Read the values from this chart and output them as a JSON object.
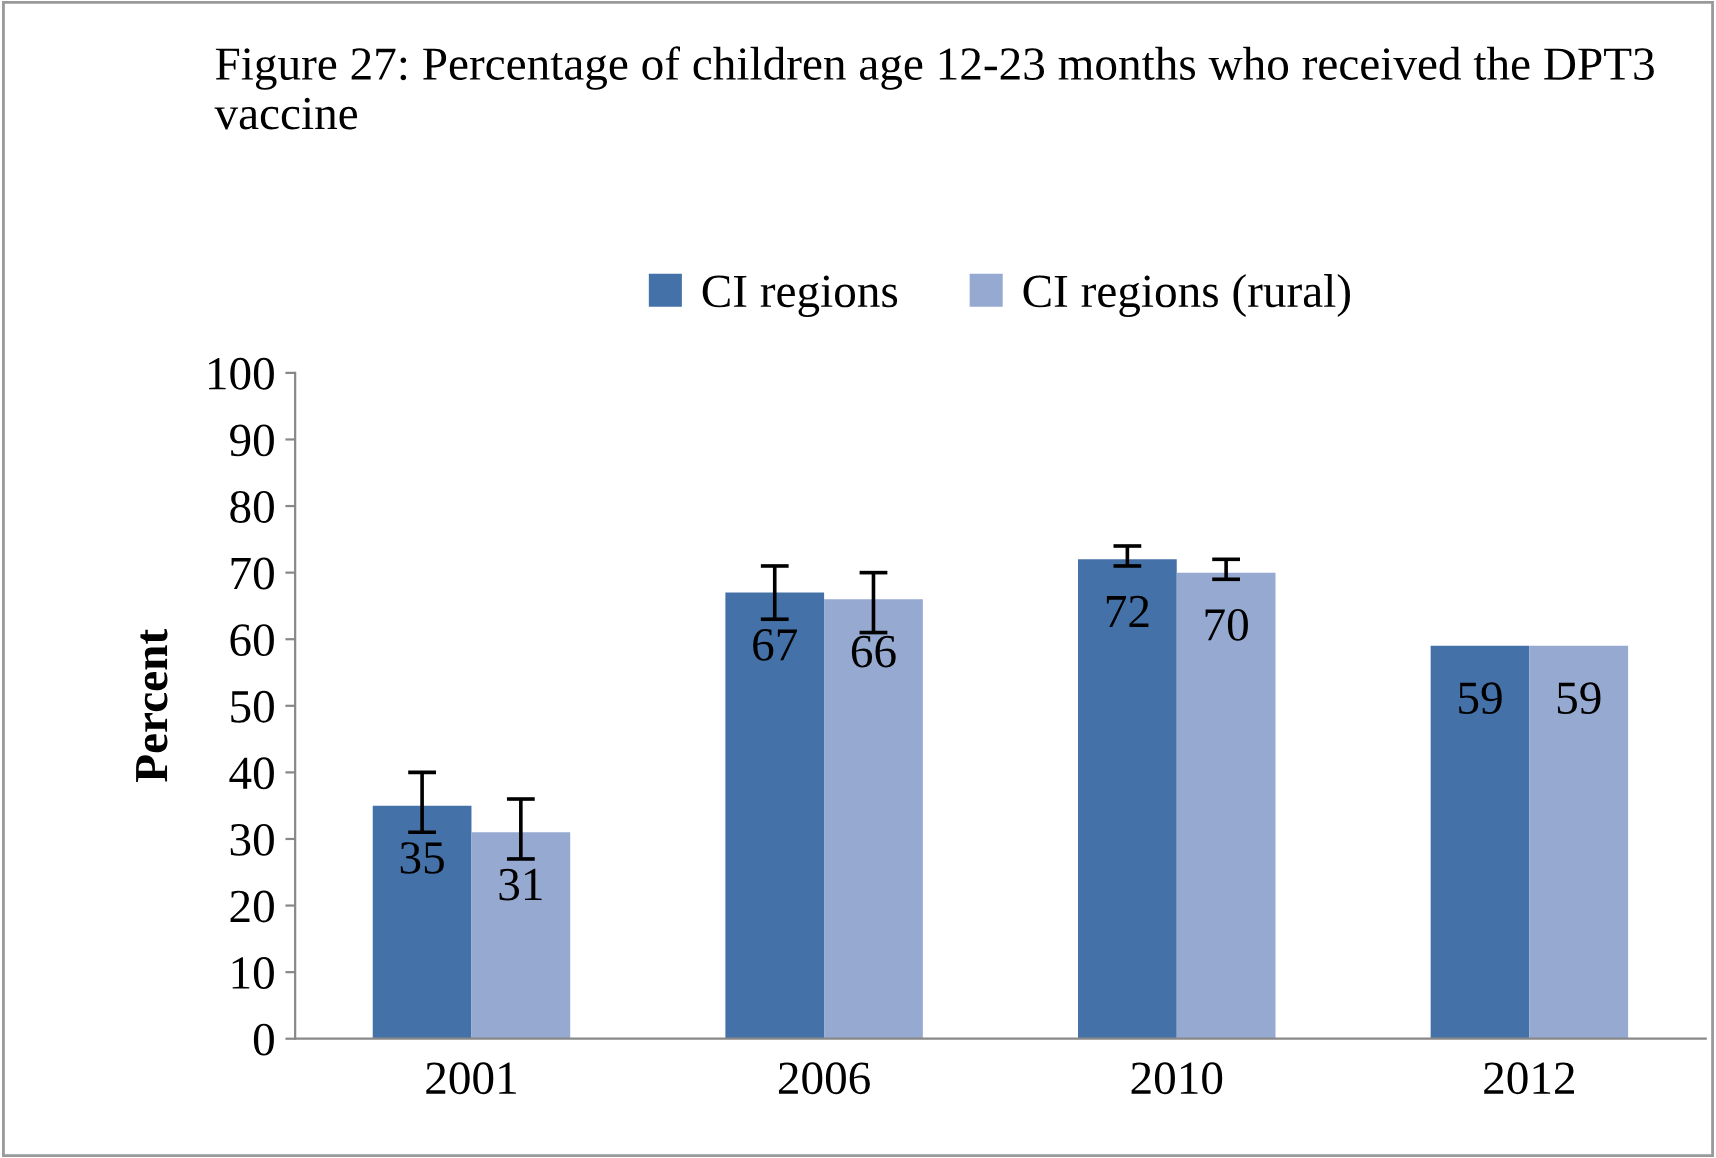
{
  "chart_data": {
    "type": "bar",
    "title": "Figure 27: Percentage of children age 12-23 months who received the DPT3 vaccine",
    "ylabel": "Percent",
    "categories": [
      "2001",
      "2006",
      "2010",
      "2012"
    ],
    "series": [
      {
        "name": "CI regions",
        "color": "#4472a8",
        "values": [
          35,
          67,
          72,
          59
        ],
        "errors": [
          [
            31,
            40
          ],
          [
            63,
            71
          ],
          [
            71,
            74
          ],
          null
        ]
      },
      {
        "name": "CI regions (rural)",
        "color": "#95a9d1",
        "values": [
          31,
          66,
          70,
          59
        ],
        "errors": [
          [
            27,
            36
          ],
          [
            61,
            70
          ],
          [
            69,
            72
          ],
          null
        ]
      }
    ],
    "ylim": [
      0,
      100
    ],
    "yticks": [
      0,
      10,
      20,
      30,
      40,
      50,
      60,
      70,
      80,
      90,
      100
    ],
    "grid": false,
    "legend": "top",
    "data_labels": true
  }
}
